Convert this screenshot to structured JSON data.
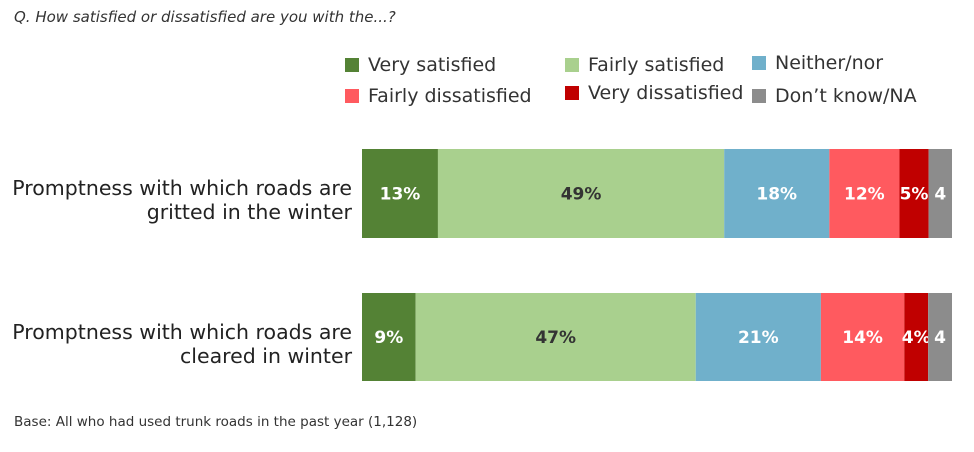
{
  "question": "Q.  How satisfied or dissatisfied are you with the...?",
  "base_note": "Base: All who had used trunk roads in the past year (1,128)",
  "chart_data": {
    "type": "bar",
    "orientation": "horizontal",
    "stacked": true,
    "xlim": [
      0,
      100
    ],
    "legend_position": "top",
    "categories": [
      [
        "Promptness with which roads are",
        "gritted in the winter"
      ],
      [
        "Promptness with which roads are",
        "cleared in winter"
      ]
    ],
    "series": [
      {
        "name": "Very satisfied",
        "color": "#548235",
        "label_color": "#ffffff",
        "values": [
          13,
          9
        ],
        "labels": [
          "13%",
          "9%"
        ]
      },
      {
        "name": "Fairly satisfied",
        "color": "#a9d08e",
        "label_color": "#333333",
        "values": [
          49,
          47
        ],
        "labels": [
          "49%",
          "47%"
        ]
      },
      {
        "name": "Neither/nor",
        "color": "#70b0cb",
        "label_color": "#ffffff",
        "values": [
          18,
          21
        ],
        "labels": [
          "18%",
          "21%"
        ]
      },
      {
        "name": "Fairly dissatisfied",
        "color": "#ff5a5f",
        "label_color": "#ffffff",
        "values": [
          12,
          14
        ],
        "labels": [
          "12%",
          "14%"
        ]
      },
      {
        "name": "Very dissatisfied",
        "color": "#c00000",
        "label_color": "#ffffff",
        "values": [
          5,
          4
        ],
        "labels": [
          "5%",
          "4%"
        ]
      },
      {
        "name": "Don’t know/NA",
        "color": "#8c8c8c",
        "label_color": "#ffffff",
        "values": [
          4,
          4
        ],
        "labels": [
          "4",
          "4"
        ]
      }
    ]
  }
}
